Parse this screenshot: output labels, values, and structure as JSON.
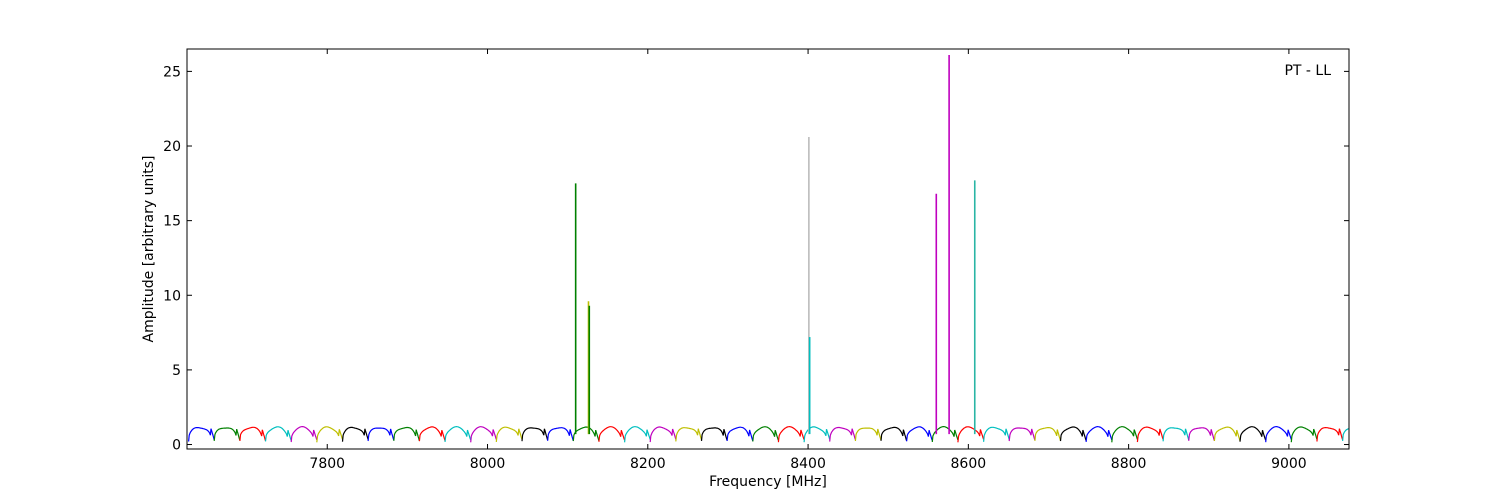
{
  "chart_data": {
    "type": "line",
    "annotation": "PT - LL",
    "xlabel": "Frequency [MHz]",
    "ylabel": "Amplitude [arbitrary units]",
    "xlim": [
      7625,
      9075
    ],
    "ylim": [
      -0.3,
      26.5
    ],
    "xticks": [
      7800,
      8000,
      8200,
      8400,
      8600,
      8800,
      9000
    ],
    "yticks": [
      0,
      5,
      10,
      15,
      20,
      25
    ],
    "grid": false,
    "channel_width_mhz": 32,
    "channel_start_mhz": 7627,
    "channel_colors": [
      "#0000ff",
      "#008000",
      "#ff0000",
      "#00bfbf",
      "#bf00bf",
      "#bfbf00",
      "#000000"
    ],
    "baseline": {
      "min": 0.2,
      "max": 1.15
    },
    "spikes": [
      {
        "x": 8110,
        "y": 17.5,
        "color": "#008000"
      },
      {
        "x": 8126,
        "y": 9.6,
        "color": "#bfbf00"
      },
      {
        "x": 8127,
        "y": 9.3,
        "color": "#008000"
      },
      {
        "x": 8401,
        "y": 20.6,
        "color": "#bbbbbb"
      },
      {
        "x": 8402,
        "y": 7.2,
        "color": "#00bfbf"
      },
      {
        "x": 8560,
        "y": 16.8,
        "color": "#bf00bf"
      },
      {
        "x": 8576,
        "y": 26.1,
        "color": "#bf00bf"
      },
      {
        "x": 8608,
        "y": 17.7,
        "color": "#2ab5a5"
      }
    ]
  }
}
